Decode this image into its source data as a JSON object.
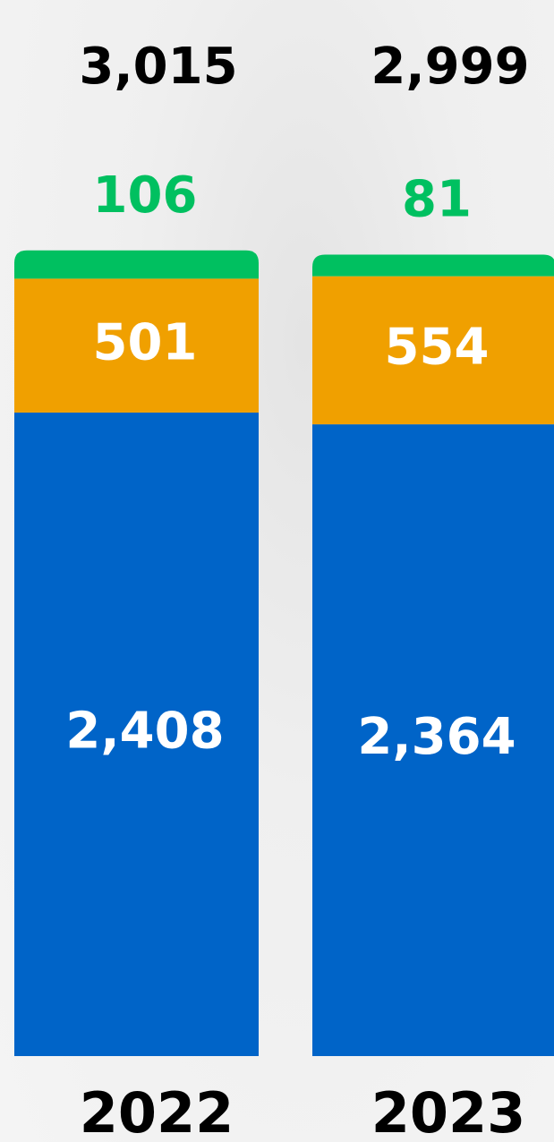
{
  "chart_data": {
    "type": "stacked-bar",
    "categories": [
      "2022",
      "2023"
    ],
    "totals": [
      {
        "value": 3015,
        "label": "3,015"
      },
      {
        "value": 2999,
        "label": "2,999"
      }
    ],
    "series": [
      {
        "color": "#0064c8",
        "values": [
          2408,
          2364
        ],
        "value_labels": [
          "2,408",
          "2,364"
        ]
      },
      {
        "color": "#f0a000",
        "values": [
          501,
          554
        ]
      },
      {
        "color": "#00c060",
        "values": [
          106,
          81
        ]
      }
    ]
  }
}
